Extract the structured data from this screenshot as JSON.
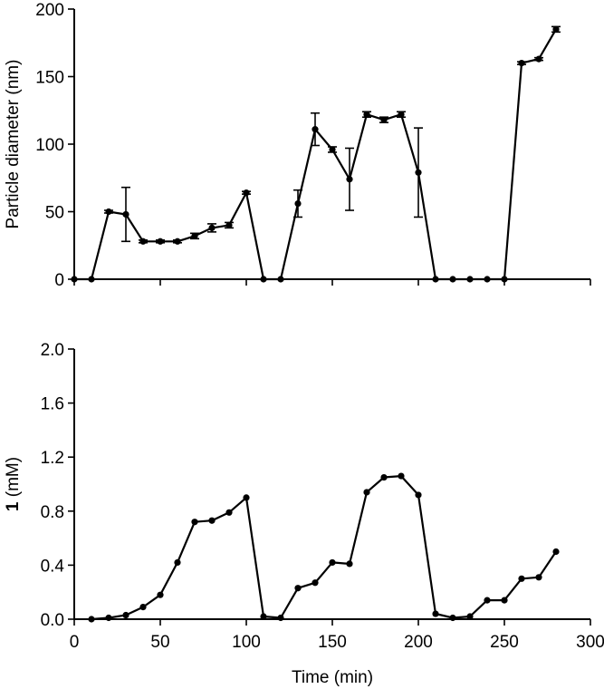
{
  "chart_data": [
    {
      "type": "line",
      "xlabel": "",
      "ylabel": "Particle diameter (nm)",
      "xlim": [
        0,
        300
      ],
      "ylim": [
        0,
        200
      ],
      "xticks": [
        0,
        50,
        100,
        150,
        200,
        250,
        300
      ],
      "yticks": [
        "0",
        "50",
        "100",
        "150",
        "200"
      ],
      "x_tick_labels_shown": false,
      "grid": false,
      "series": [
        {
          "x": [
            0,
            10,
            20,
            30,
            40,
            50,
            60,
            70,
            80,
            90,
            100,
            110,
            120,
            130,
            140,
            150,
            160,
            170,
            180,
            190,
            200,
            210,
            220,
            230,
            240,
            250,
            260,
            270,
            280
          ],
          "y": [
            0,
            0,
            50,
            48,
            28,
            28,
            28,
            32,
            38,
            40,
            64,
            0,
            0,
            56,
            111,
            96,
            74,
            122,
            118,
            122,
            79,
            0,
            0,
            0,
            0,
            0,
            160,
            163,
            185
          ],
          "error": [
            0,
            0,
            1,
            20,
            1,
            1,
            1,
            2,
            3,
            2,
            1,
            0,
            0,
            10,
            12,
            2,
            23,
            2,
            2,
            2,
            33,
            0,
            0,
            0,
            0,
            0,
            1,
            1,
            2
          ]
        }
      ]
    },
    {
      "type": "line",
      "xlabel": "Time (min)",
      "ylabel_bold": "1",
      "ylabel": " (mM)",
      "xlim": [
        0,
        300
      ],
      "ylim": [
        0,
        2.0
      ],
      "xticks": [
        "0",
        "50",
        "100",
        "150",
        "200",
        "250",
        "300"
      ],
      "yticks": [
        "0.0",
        "0.4",
        "0.8",
        "1.2",
        "1.6",
        "2.0"
      ],
      "grid": false,
      "series": [
        {
          "x": [
            10,
            20,
            30,
            40,
            50,
            60,
            70,
            80,
            90,
            100,
            110,
            120,
            130,
            140,
            150,
            160,
            170,
            180,
            190,
            200,
            210,
            220,
            230,
            240,
            250,
            260,
            270,
            280
          ],
          "y": [
            0.0,
            0.01,
            0.03,
            0.09,
            0.18,
            0.42,
            0.72,
            0.73,
            0.79,
            0.9,
            0.02,
            0.01,
            0.23,
            0.27,
            0.42,
            0.41,
            0.94,
            1.05,
            1.06,
            0.92,
            0.04,
            0.01,
            0.02,
            0.14,
            0.14,
            0.3,
            0.31,
            0.5
          ]
        }
      ]
    }
  ]
}
